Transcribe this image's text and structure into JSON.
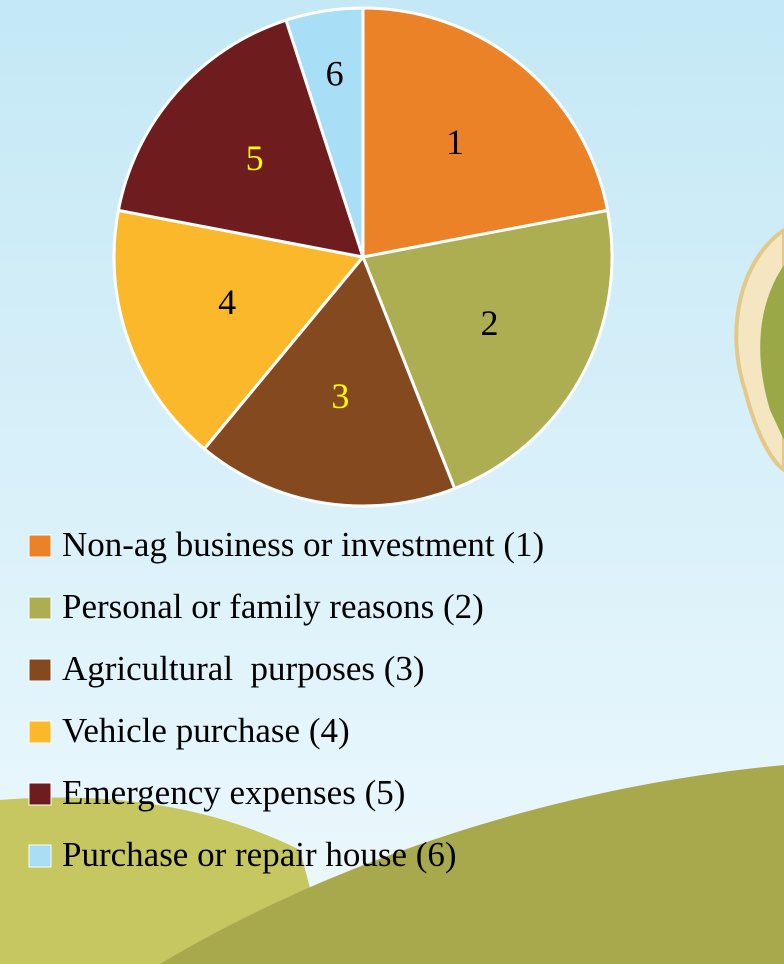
{
  "chart_data": {
    "type": "pie",
    "categories": [
      "Non-ag business or investment (1)",
      "Personal or family reasons (2)",
      "Agricultural  purposes (3)",
      "Vehicle purchase (4)",
      "Emergency expenses (5)",
      "Purchase or repair house (6)"
    ],
    "values": [
      22,
      22,
      17,
      17,
      17,
      5
    ],
    "slice_labels": [
      "1",
      "2",
      "3",
      "4",
      "5",
      "6"
    ],
    "label_colors": [
      "#000000",
      "#000000",
      "#ffff00",
      "#000000",
      "#ffff00",
      "#000000"
    ],
    "colors": [
      "#ec8227",
      "#adad52",
      "#84491f",
      "#fbb82b",
      "#6f1c1e",
      "#a9dff6"
    ],
    "legend": "bottom"
  }
}
